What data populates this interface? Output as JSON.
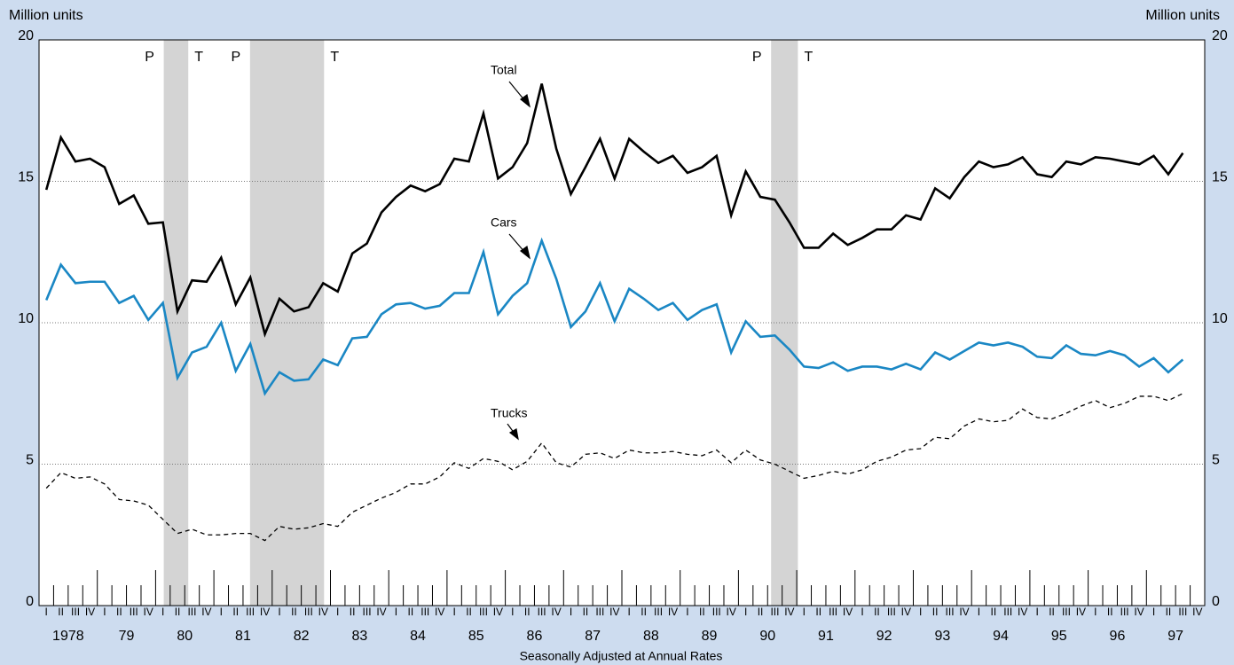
{
  "chart_data": {
    "type": "line",
    "y_axis_label": "Million units",
    "y2_axis_label": "Million units",
    "x_axis_title": "Seasonally Adjusted at Annual Rates",
    "categories": [
      "I",
      "II",
      "III",
      "IV",
      "I",
      "II",
      "III",
      "IV",
      "I",
      "II",
      "III",
      "IV",
      "I",
      "II",
      "III",
      "IV",
      "I",
      "II",
      "III",
      "IV",
      "I",
      "II",
      "III",
      "IV",
      "I",
      "II",
      "III",
      "IV",
      "I",
      "II",
      "III",
      "IV",
      "I",
      "II",
      "III",
      "IV",
      "I",
      "II",
      "III",
      "IV",
      "I",
      "II",
      "III",
      "IV",
      "I",
      "II",
      "III",
      "IV",
      "I",
      "II",
      "III",
      "IV",
      "I",
      "II",
      "III",
      "IV",
      "I",
      "II",
      "III",
      "IV",
      "I",
      "II",
      "III",
      "IV",
      "I",
      "II",
      "III",
      "IV",
      "I",
      "II",
      "III",
      "IV",
      "I",
      "II",
      "III",
      "IV",
      "I",
      "II",
      "III",
      "IV"
    ],
    "year_labels": [
      "1978",
      "79",
      "80",
      "81",
      "82",
      "83",
      "84",
      "85",
      "86",
      "87",
      "88",
      "89",
      "90",
      "91",
      "92",
      "93",
      "94",
      "95",
      "96",
      "97"
    ],
    "xlim": [
      1978,
      1998
    ],
    "ylim": [
      0,
      20
    ],
    "yticks": [
      0,
      5,
      10,
      15,
      20
    ],
    "y2lim": [
      0,
      20
    ],
    "y2ticks": [
      0,
      5,
      10,
      15,
      20
    ],
    "grid": true,
    "series": [
      {
        "name": "Total",
        "color": "#000000",
        "dashed": false,
        "values": [
          14.7,
          16.55,
          15.7,
          15.8,
          15.5,
          14.2,
          14.5,
          13.5,
          13.55,
          10.4,
          11.5,
          11.45,
          12.3,
          10.65,
          11.6,
          9.6,
          10.85,
          10.4,
          10.55,
          11.4,
          11.1,
          12.45,
          12.8,
          13.9,
          14.45,
          14.85,
          14.65,
          14.9,
          15.8,
          15.7,
          17.4,
          15.1,
          15.5,
          16.35,
          18.45,
          16.15,
          14.55,
          15.5,
          16.5,
          15.1,
          16.5,
          16.05,
          15.65,
          15.9,
          15.3,
          15.5,
          15.9,
          13.8,
          15.35,
          14.45,
          14.35,
          13.55,
          12.65,
          12.65,
          13.15,
          12.75,
          13.0,
          13.3,
          13.3,
          13.8,
          13.65,
          14.75,
          14.4,
          15.15,
          15.7,
          15.5,
          15.6,
          15.85,
          15.25,
          15.15,
          15.7,
          15.6,
          15.85,
          15.8,
          15.7,
          15.6,
          15.9,
          15.25,
          16.0,
          null
        ]
      },
      {
        "name": "Cars",
        "color": "#1a87c4",
        "dashed": false,
        "values": [
          10.8,
          12.05,
          11.4,
          11.45,
          11.45,
          10.7,
          10.95,
          10.1,
          10.7,
          8.05,
          8.95,
          9.15,
          10.0,
          8.3,
          9.25,
          7.5,
          8.25,
          7.95,
          8.0,
          8.7,
          8.5,
          9.45,
          9.5,
          10.3,
          10.65,
          10.7,
          10.5,
          10.6,
          11.05,
          11.05,
          12.5,
          10.3,
          10.95,
          11.4,
          12.9,
          11.55,
          9.85,
          10.4,
          11.4,
          10.05,
          11.2,
          10.85,
          10.45,
          10.7,
          10.1,
          10.45,
          10.65,
          8.95,
          10.05,
          9.5,
          9.55,
          9.05,
          8.45,
          8.4,
          8.6,
          8.3,
          8.45,
          8.45,
          8.35,
          8.55,
          8.35,
          8.95,
          8.7,
          9.0,
          9.3,
          9.2,
          9.3,
          9.15,
          8.8,
          8.75,
          9.2,
          8.9,
          8.85,
          9.0,
          8.85,
          8.45,
          8.75,
          8.25,
          8.7,
          null
        ]
      },
      {
        "name": "Trucks",
        "color": "#000000",
        "dashed": true,
        "values": [
          4.15,
          4.7,
          4.5,
          4.55,
          4.3,
          3.75,
          3.7,
          3.55,
          3.05,
          2.55,
          2.7,
          2.5,
          2.5,
          2.55,
          2.55,
          2.3,
          2.8,
          2.7,
          2.75,
          2.9,
          2.8,
          3.3,
          3.55,
          3.8,
          4.0,
          4.3,
          4.3,
          4.55,
          5.05,
          4.85,
          5.2,
          5.1,
          4.8,
          5.1,
          5.75,
          5.05,
          4.9,
          5.35,
          5.4,
          5.2,
          5.5,
          5.4,
          5.4,
          5.45,
          5.35,
          5.3,
          5.5,
          5.05,
          5.5,
          5.15,
          5.0,
          4.75,
          4.5,
          4.6,
          4.75,
          4.65,
          4.8,
          5.1,
          5.25,
          5.5,
          5.55,
          5.95,
          5.9,
          6.35,
          6.6,
          6.5,
          6.55,
          6.95,
          6.65,
          6.6,
          6.8,
          7.05,
          7.25,
          7.0,
          7.15,
          7.4,
          7.4,
          7.25,
          7.5,
          null
        ]
      }
    ],
    "recessions": [
      {
        "peak_label": "P",
        "trough_label": "T",
        "start": 1980.14,
        "end": 1980.56
      },
      {
        "peak_label": "P",
        "trough_label": "T",
        "start": 1981.62,
        "end": 1982.89
      },
      {
        "peak_label": "P",
        "trough_label": "T",
        "start": 1990.56,
        "end": 1991.02
      }
    ]
  }
}
